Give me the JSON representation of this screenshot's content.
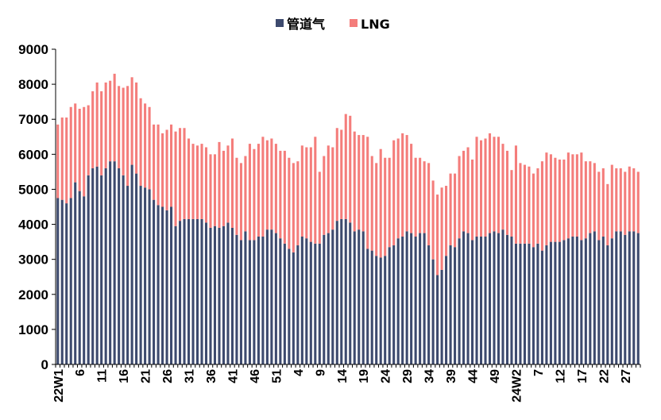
{
  "chart_data": {
    "type": "bar",
    "stacked": true,
    "title": "",
    "xlabel": "",
    "ylabel": "",
    "ylim": [
      0,
      9000
    ],
    "yticks": [
      0,
      1000,
      2000,
      3000,
      4000,
      5000,
      6000,
      7000,
      8000,
      9000
    ],
    "grid": false,
    "legend_position": "top",
    "colors": {
      "pipeline": "#3d4a6e",
      "lng": "#f47d7b",
      "axis": "#000000"
    },
    "xtick_labels": [
      "22W1",
      "6",
      "11",
      "16",
      "21",
      "26",
      "31",
      "36",
      "41",
      "46",
      "51",
      "4",
      "9",
      "14",
      "19",
      "24",
      "29",
      "34",
      "39",
      "44",
      "49",
      "24W2",
      "7",
      "12",
      "17",
      "22",
      "27"
    ],
    "xtick_index": [
      0,
      5,
      10,
      15,
      20,
      25,
      30,
      35,
      40,
      45,
      50,
      55,
      60,
      65,
      70,
      75,
      80,
      85,
      90,
      95,
      100,
      105,
      110,
      115,
      120,
      125,
      130
    ],
    "series": [
      {
        "name": "管道气",
        "key": "pipeline",
        "values": [
          4750,
          4700,
          4600,
          4750,
          5200,
          4950,
          4800,
          5400,
          5600,
          5650,
          5400,
          5600,
          5800,
          5800,
          5600,
          5400,
          5100,
          5700,
          5450,
          5100,
          5050,
          5000,
          4700,
          4550,
          4500,
          4400,
          4500,
          3950,
          4100,
          4150,
          4150,
          4150,
          4150,
          4150,
          4050,
          3900,
          3950,
          3900,
          3950,
          4050,
          3900,
          3700,
          3550,
          3800,
          3550,
          3550,
          3650,
          3650,
          3850,
          3850,
          3750,
          3600,
          3450,
          3300,
          3200,
          3400,
          3650,
          3600,
          3500,
          3450,
          3450,
          3700,
          3750,
          3850,
          4100,
          4150,
          4150,
          4050,
          3800,
          3850,
          3800,
          3300,
          3250,
          3100,
          3050,
          3100,
          3350,
          3400,
          3600,
          3650,
          3800,
          3750,
          3650,
          3750,
          3750,
          3400,
          3000,
          2550,
          2700,
          3100,
          3400,
          3350,
          3600,
          3800,
          3750,
          3550,
          3650,
          3650,
          3650,
          3750,
          3800,
          3750,
          3850,
          3700,
          3650,
          3450,
          3450,
          3450,
          3450,
          3350,
          3450,
          3250,
          3400,
          3500,
          3500,
          3500,
          3550,
          3600,
          3650,
          3650,
          3550,
          3600,
          3750,
          3800,
          3550,
          3650,
          3400,
          3600,
          3800,
          3800,
          3700,
          3800,
          3800,
          3750
        ]
      },
      {
        "name": "LNG",
        "key": "lng",
        "values": [
          2100,
          2350,
          2450,
          2600,
          2250,
          2350,
          2550,
          2000,
          2200,
          2400,
          2400,
          2450,
          2300,
          2500,
          2350,
          2500,
          2850,
          2500,
          2600,
          2500,
          2400,
          2350,
          2150,
          2300,
          2100,
          2300,
          2350,
          2700,
          2650,
          2600,
          2300,
          2150,
          2100,
          2150,
          2150,
          2100,
          2050,
          2450,
          2150,
          2200,
          2550,
          2200,
          2200,
          2150,
          2750,
          2600,
          2650,
          2850,
          2550,
          2600,
          2550,
          2500,
          2650,
          2600,
          2550,
          2400,
          2600,
          2600,
          2700,
          3050,
          2050,
          2250,
          2500,
          2350,
          2650,
          2550,
          3000,
          3050,
          2850,
          2700,
          2750,
          3200,
          2700,
          2650,
          3100,
          2800,
          2550,
          3000,
          2850,
          2950,
          2750,
          2550,
          2250,
          2150,
          2050,
          2350,
          2250,
          2300,
          2350,
          2000,
          2050,
          2100,
          2350,
          2300,
          2450,
          2300,
          2850,
          2750,
          2800,
          2850,
          2700,
          2750,
          2450,
          2400,
          1900,
          2800,
          2300,
          2250,
          2200,
          2100,
          2150,
          2550,
          2650,
          2500,
          2400,
          2350,
          2300,
          2450,
          2350,
          2350,
          2500,
          2200,
          2050,
          1950,
          1950,
          1950,
          1750,
          2100,
          1800,
          1800,
          1800,
          1850,
          1800,
          1750
        ]
      }
    ]
  }
}
